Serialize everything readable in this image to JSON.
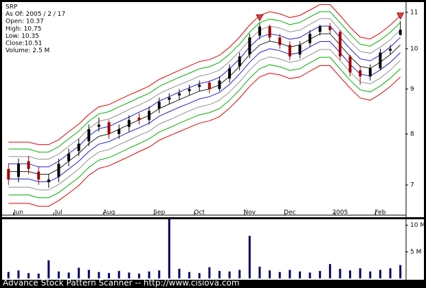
{
  "chart_data": {
    "type": "candlestick",
    "info": [
      "SRP",
      "As Of: 2005 / 2 / 17",
      "Open: 10.37",
      "High: 10.75",
      "Low: 10.35",
      "Close:10.51",
      "Volume: 2.5 M"
    ],
    "footer": "Advance Stock Pattern Scanner -- http://www.cisiova.com",
    "categories": [
      null,
      "Jun",
      null,
      null,
      null,
      "Jul",
      null,
      null,
      null,
      null,
      "Aug",
      null,
      null,
      null,
      null,
      "Sep",
      null,
      null,
      null,
      "Oct",
      null,
      null,
      null,
      null,
      "Nov",
      null,
      null,
      null,
      "Dec",
      null,
      null,
      null,
      null,
      "2005",
      null,
      null,
      null,
      "Feb",
      null,
      null
    ],
    "open": [
      7.3,
      7.15,
      7.45,
      7.25,
      7.05,
      7.15,
      7.45,
      7.65,
      7.85,
      8.15,
      8.25,
      8.0,
      8.15,
      8.35,
      8.3,
      8.55,
      8.75,
      8.85,
      8.95,
      9.05,
      9.15,
      9.0,
      9.25,
      9.55,
      9.85,
      10.35,
      10.6,
      10.3,
      10.1,
      9.85,
      10.15,
      10.45,
      10.6,
      10.45,
      9.8,
      9.45,
      9.3,
      9.5,
      9.95,
      10.37
    ],
    "high": [
      7.4,
      7.5,
      7.55,
      7.35,
      7.2,
      7.5,
      7.7,
      7.9,
      8.2,
      8.35,
      8.3,
      8.2,
      8.4,
      8.45,
      8.6,
      8.8,
      8.9,
      9.0,
      9.1,
      9.2,
      9.2,
      9.3,
      9.6,
      9.9,
      10.4,
      10.7,
      10.65,
      10.4,
      10.2,
      10.2,
      10.5,
      10.65,
      10.7,
      10.5,
      9.85,
      9.55,
      9.6,
      10.0,
      10.1,
      10.75
    ],
    "low": [
      7.0,
      7.05,
      7.2,
      7.0,
      6.95,
      7.05,
      7.35,
      7.55,
      7.75,
      8.05,
      7.9,
      7.9,
      8.05,
      8.2,
      8.2,
      8.45,
      8.65,
      8.75,
      8.85,
      8.95,
      8.9,
      8.95,
      9.15,
      9.45,
      9.75,
      10.25,
      10.2,
      10.0,
      9.7,
      9.75,
      10.05,
      10.35,
      10.4,
      9.7,
      9.3,
      9.1,
      9.2,
      9.45,
      9.85,
      10.35
    ],
    "close": [
      7.1,
      7.4,
      7.3,
      7.1,
      7.1,
      7.4,
      7.6,
      7.8,
      8.1,
      8.2,
      8.0,
      8.1,
      8.3,
      8.3,
      8.5,
      8.7,
      8.8,
      8.9,
      9.0,
      9.1,
      9.0,
      9.2,
      9.5,
      9.8,
      10.3,
      10.6,
      10.3,
      10.1,
      9.8,
      10.1,
      10.4,
      10.6,
      10.5,
      9.8,
      9.4,
      9.3,
      9.5,
      9.9,
      10.0,
      10.51
    ],
    "up_color": "#000000",
    "down_color": "#a00000",
    "log_y": true,
    "ylim": [
      6.48,
      11.26
    ],
    "yticks": [
      7,
      8,
      9,
      10,
      11
    ],
    "bands": [
      {
        "color": "#e00000",
        "values": [
          7.83,
          7.83,
          7.83,
          7.78,
          7.78,
          7.88,
          8.05,
          8.21,
          8.42,
          8.59,
          8.64,
          8.75,
          8.86,
          8.96,
          9.07,
          9.23,
          9.34,
          9.45,
          9.56,
          9.67,
          9.72,
          9.83,
          10.04,
          10.31,
          10.64,
          10.91,
          11.02,
          10.96,
          10.85,
          10.91,
          11.07,
          11.23,
          11.23,
          10.91,
          10.58,
          10.31,
          10.26,
          10.42,
          10.64,
          10.91
        ]
      },
      {
        "color": "#00b000",
        "values": [
          7.69,
          7.69,
          7.69,
          7.63,
          7.63,
          7.74,
          7.9,
          8.06,
          8.27,
          8.43,
          8.48,
          8.59,
          8.69,
          8.8,
          8.9,
          9.06,
          9.17,
          9.28,
          9.38,
          9.49,
          9.54,
          9.65,
          9.86,
          10.12,
          10.44,
          10.71,
          10.81,
          10.76,
          10.65,
          10.71,
          10.87,
          11.02,
          11.02,
          10.71,
          10.39,
          10.12,
          10.07,
          10.23,
          10.44,
          10.71
        ]
      },
      {
        "color": "#909090",
        "values": [
          7.54,
          7.54,
          7.54,
          7.49,
          7.49,
          7.59,
          7.75,
          7.9,
          8.11,
          8.27,
          8.32,
          8.42,
          8.53,
          8.63,
          8.74,
          8.89,
          9.0,
          9.1,
          9.2,
          9.31,
          9.36,
          9.46,
          9.67,
          9.93,
          10.24,
          10.5,
          10.61,
          10.56,
          10.45,
          10.5,
          10.66,
          10.82,
          10.82,
          10.5,
          10.19,
          9.93,
          9.88,
          10.04,
          10.24,
          10.5
        ]
      },
      {
        "color": "#2020d0",
        "values": [
          7.4,
          7.4,
          7.4,
          7.34,
          7.34,
          7.45,
          7.6,
          7.75,
          7.96,
          8.11,
          8.16,
          8.26,
          8.36,
          8.47,
          8.57,
          8.72,
          8.82,
          8.93,
          9.03,
          9.13,
          9.18,
          9.28,
          9.49,
          9.74,
          10.05,
          10.3,
          10.4,
          10.35,
          10.25,
          10.3,
          10.46,
          10.61,
          10.61,
          10.3,
          10.0,
          9.74,
          9.69,
          9.84,
          10.05,
          10.3
        ]
      },
      {
        "color": "#202020",
        "values": [
          7.25,
          7.25,
          7.25,
          7.2,
          7.2,
          7.3,
          7.45,
          7.6,
          7.8,
          7.95,
          8.0,
          8.1,
          8.2,
          8.3,
          8.4,
          8.55,
          8.65,
          8.75,
          8.85,
          8.95,
          9.0,
          9.1,
          9.3,
          9.55,
          9.85,
          10.1,
          10.2,
          10.15,
          10.05,
          10.1,
          10.25,
          10.4,
          10.4,
          10.1,
          9.8,
          9.55,
          9.5,
          9.65,
          9.85,
          10.1
        ]
      },
      {
        "color": "#2020d0",
        "values": [
          7.11,
          7.11,
          7.11,
          7.06,
          7.06,
          7.15,
          7.3,
          7.45,
          7.64,
          7.79,
          7.84,
          7.94,
          8.04,
          8.13,
          8.23,
          8.38,
          8.48,
          8.58,
          8.67,
          8.77,
          8.82,
          8.92,
          9.11,
          9.36,
          9.65,
          9.9,
          10.0,
          9.95,
          9.85,
          9.9,
          10.05,
          10.19,
          10.19,
          9.9,
          9.6,
          9.36,
          9.31,
          9.46,
          9.65,
          9.9
        ]
      },
      {
        "color": "#909090",
        "values": [
          6.96,
          6.96,
          6.96,
          6.91,
          6.91,
          7.01,
          7.15,
          7.3,
          7.49,
          7.63,
          7.68,
          7.78,
          7.87,
          7.97,
          8.06,
          8.21,
          8.3,
          8.4,
          8.5,
          8.59,
          8.64,
          8.74,
          8.93,
          9.17,
          9.46,
          9.7,
          9.79,
          9.74,
          9.65,
          9.7,
          9.84,
          9.98,
          9.98,
          9.7,
          9.41,
          9.17,
          9.12,
          9.26,
          9.46,
          9.7
        ]
      },
      {
        "color": "#00b000",
        "values": [
          6.82,
          6.82,
          6.82,
          6.77,
          6.77,
          6.86,
          7.0,
          7.14,
          7.33,
          7.47,
          7.52,
          7.61,
          7.71,
          7.8,
          7.9,
          8.04,
          8.13,
          8.23,
          8.32,
          8.41,
          8.46,
          8.55,
          8.74,
          8.98,
          9.26,
          9.49,
          9.59,
          9.54,
          9.45,
          9.49,
          9.64,
          9.78,
          9.78,
          9.49,
          9.21,
          8.98,
          8.93,
          9.07,
          9.26,
          9.49
        ]
      },
      {
        "color": "#e00000",
        "values": [
          6.67,
          6.67,
          6.67,
          6.62,
          6.62,
          6.72,
          6.85,
          6.99,
          7.18,
          7.31,
          7.36,
          7.45,
          7.54,
          7.64,
          7.73,
          7.87,
          7.96,
          8.05,
          8.14,
          8.23,
          8.28,
          8.37,
          8.56,
          8.79,
          9.06,
          9.29,
          9.38,
          9.34,
          9.25,
          9.29,
          9.43,
          9.57,
          9.57,
          9.29,
          9.02,
          8.79,
          8.74,
          8.88,
          9.06,
          9.29
        ]
      }
    ],
    "signals": [
      25,
      39
    ],
    "signal_color": "#e04040",
    "volume": {
      "color": "#000066",
      "values": [
        1200000,
        1500000,
        1000000,
        900000,
        3400000,
        1300000,
        1100000,
        2000000,
        1600000,
        1200000,
        1000000,
        1400000,
        1100000,
        900000,
        1300000,
        1500000,
        11200000,
        1800000,
        1200000,
        1000000,
        2100000,
        1400000,
        1300000,
        1600000,
        8000000,
        2200000,
        1500000,
        1200000,
        1600000,
        1300000,
        1100000,
        1400000,
        2700000,
        1800000,
        1500000,
        1900000,
        1300000,
        1600000,
        1900000,
        2500000
      ],
      "ylim": [
        0,
        11000000
      ],
      "yticks": [
        {
          "value": 5000000,
          "label": "5 M"
        },
        {
          "value": 10000000,
          "label": "10 M"
        }
      ]
    }
  }
}
